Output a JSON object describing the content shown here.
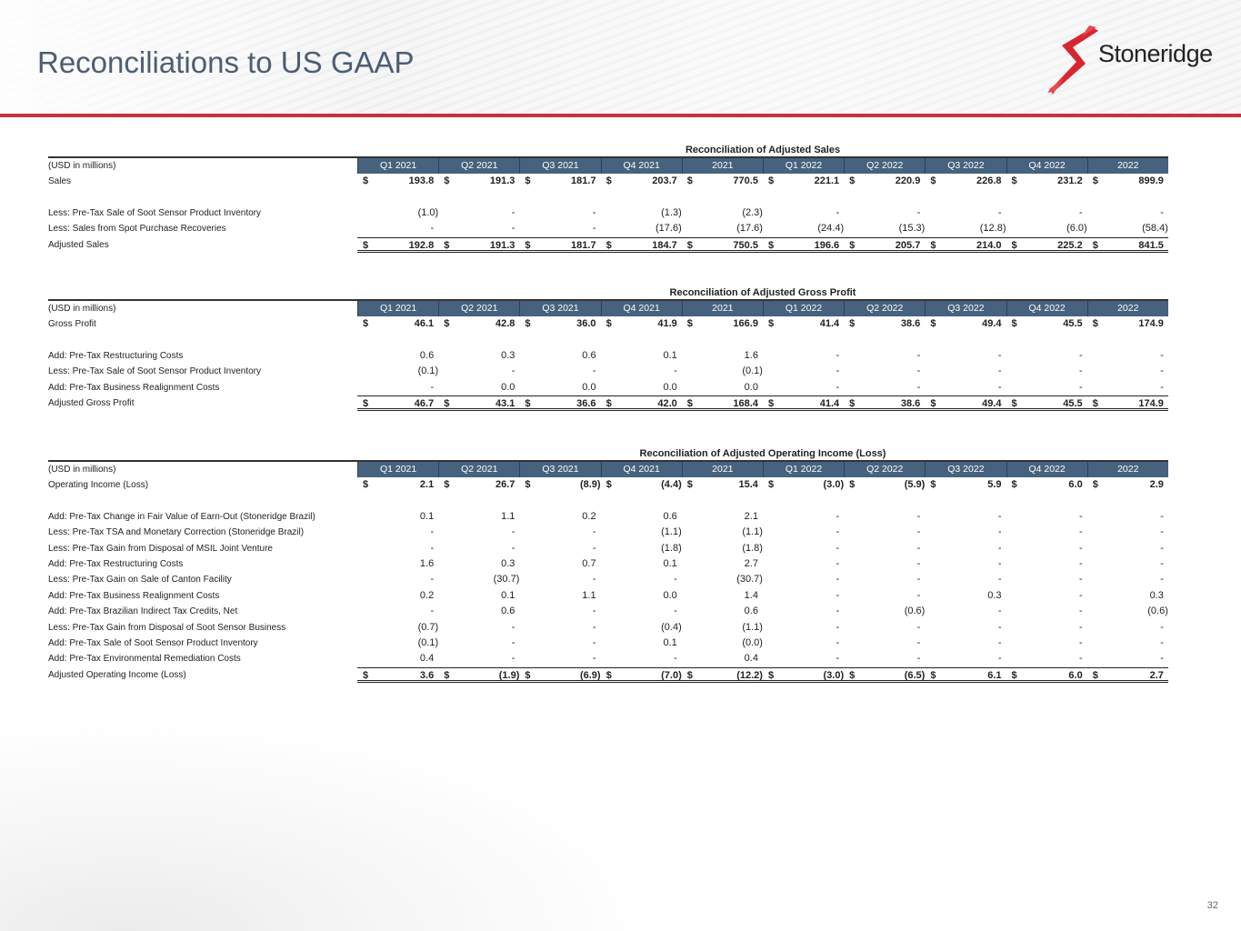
{
  "header": {
    "title": "Reconciliations to US GAAP",
    "logo_text": "Stoneridge",
    "brand_color": "#c8323b"
  },
  "columns": [
    "Q1 2021",
    "Q2 2021",
    "Q3 2021",
    "Q4 2021",
    "2021",
    "Q1 2022",
    "Q2 2022",
    "Q3 2022",
    "Q4 2022",
    "2022"
  ],
  "tables": [
    {
      "title": "Reconciliation of Adjusted Sales",
      "unit_label": "(USD in millions)",
      "rows": [
        {
          "label": "Sales",
          "type": "bold",
          "values": [
            "193.8",
            "191.3",
            "181.7",
            "203.7",
            "770.5",
            "221.1",
            "220.9",
            "226.8",
            "231.2",
            "899.9"
          ]
        },
        {
          "type": "blank"
        },
        {
          "label": "Less: Pre-Tax Sale of Soot Sensor Product Inventory",
          "values": [
            "(1.0)",
            "-",
            "-",
            "(1.3)",
            "(2.3)",
            "-",
            "-",
            "-",
            "-",
            "-"
          ]
        },
        {
          "label": "Less: Sales from Spot Purchase Recoveries",
          "values": [
            "-",
            "-",
            "-",
            "(17.6)",
            "(17.6)",
            "(24.4)",
            "(15.3)",
            "(12.8)",
            "(6.0)",
            "(58.4)"
          ]
        },
        {
          "label": "Adjusted Sales",
          "type": "total",
          "values": [
            "192.8",
            "191.3",
            "181.7",
            "184.7",
            "750.5",
            "196.6",
            "205.7",
            "214.0",
            "225.2",
            "841.5"
          ]
        }
      ]
    },
    {
      "title": "Reconciliation of Adjusted Gross Profit",
      "unit_label": "(USD in millions)",
      "rows": [
        {
          "label": "Gross Profit",
          "type": "bold",
          "values": [
            "46.1",
            "42.8",
            "36.0",
            "41.9",
            "166.9",
            "41.4",
            "38.6",
            "49.4",
            "45.5",
            "174.9"
          ]
        },
        {
          "type": "blank"
        },
        {
          "label": "Add: Pre-Tax Restructuring Costs",
          "values": [
            "0.6",
            "0.3",
            "0.6",
            "0.1",
            "1.6",
            "-",
            "-",
            "-",
            "-",
            "-"
          ]
        },
        {
          "label": "Less: Pre-Tax Sale of Soot Sensor Product Inventory",
          "values": [
            "(0.1)",
            "-",
            "-",
            "-",
            "(0.1)",
            "-",
            "-",
            "-",
            "-",
            "-"
          ]
        },
        {
          "label": "Add: Pre-Tax Business Realignment Costs",
          "values": [
            "-",
            "0.0",
            "0.0",
            "0.0",
            "0.0",
            "-",
            "-",
            "-",
            "-",
            "-"
          ]
        },
        {
          "label": "Adjusted Gross Profit",
          "type": "total",
          "values": [
            "46.7",
            "43.1",
            "36.6",
            "42.0",
            "168.4",
            "41.4",
            "38.6",
            "49.4",
            "45.5",
            "174.9"
          ]
        }
      ]
    },
    {
      "title": "Reconciliation of Adjusted Operating Income (Loss)",
      "unit_label": "(USD in millions)",
      "rows": [
        {
          "label": "Operating Income (Loss)",
          "type": "bold",
          "values": [
            "2.1",
            "26.7",
            "(8.9)",
            "(4.4)",
            "15.4",
            "(3.0)",
            "(5.9)",
            "5.9",
            "6.0",
            "2.9"
          ]
        },
        {
          "type": "blank"
        },
        {
          "label": "Add: Pre-Tax Change in Fair Value of Earn-Out (Stoneridge Brazil)",
          "values": [
            "0.1",
            "1.1",
            "0.2",
            "0.6",
            "2.1",
            "-",
            "-",
            "-",
            "-",
            "-"
          ]
        },
        {
          "label": "Less: Pre-Tax TSA and Monetary Correction (Stoneridge Brazil)",
          "values": [
            "-",
            "-",
            "-",
            "(1.1)",
            "(1.1)",
            "-",
            "-",
            "-",
            "-",
            "-"
          ]
        },
        {
          "label": "Less: Pre-Tax Gain from Disposal of MSIL Joint Venture",
          "values": [
            "-",
            "-",
            "-",
            "(1.8)",
            "(1.8)",
            "-",
            "-",
            "-",
            "-",
            "-"
          ]
        },
        {
          "label": "Add: Pre-Tax Restructuring Costs",
          "values": [
            "1.6",
            "0.3",
            "0.7",
            "0.1",
            "2.7",
            "-",
            "-",
            "-",
            "-",
            "-"
          ]
        },
        {
          "label": "Less: Pre-Tax Gain on Sale of Canton Facility",
          "values": [
            "-",
            "(30.7)",
            "-",
            "-",
            "(30.7)",
            "-",
            "-",
            "-",
            "-",
            "-"
          ]
        },
        {
          "label": "Add: Pre-Tax Business Realignment Costs",
          "values": [
            "0.2",
            "0.1",
            "1.1",
            "0.0",
            "1.4",
            "-",
            "-",
            "0.3",
            "-",
            "0.3"
          ]
        },
        {
          "label": "Add: Pre-Tax Brazilian Indirect Tax Credits, Net",
          "values": [
            "-",
            "0.6",
            "-",
            "-",
            "0.6",
            "-",
            "(0.6)",
            "-",
            "-",
            "(0.6)"
          ]
        },
        {
          "label": "Less: Pre-Tax Gain from Disposal of Soot Sensor Business",
          "values": [
            "(0.7)",
            "-",
            "-",
            "(0.4)",
            "(1.1)",
            "-",
            "-",
            "-",
            "-",
            "-"
          ]
        },
        {
          "label": "Add: Pre-Tax Sale of Soot Sensor Product Inventory",
          "values": [
            "(0.1)",
            "-",
            "-",
            "0.1",
            "(0.0)",
            "-",
            "-",
            "-",
            "-",
            "-"
          ]
        },
        {
          "label": "Add: Pre-Tax Environmental Remediation Costs",
          "values": [
            "0.4",
            "-",
            "-",
            "-",
            "0.4",
            "-",
            "-",
            "-",
            "-",
            "-"
          ]
        },
        {
          "label": "Adjusted Operating Income (Loss)",
          "type": "total",
          "values": [
            "3.6",
            "(1.9)",
            "(6.9)",
            "(7.0)",
            "(12.2)",
            "(3.0)",
            "(6.5)",
            "6.1",
            "6.0",
            "2.7"
          ]
        }
      ]
    }
  ],
  "currency_symbol": "$",
  "footer": {
    "page_number": "32"
  }
}
